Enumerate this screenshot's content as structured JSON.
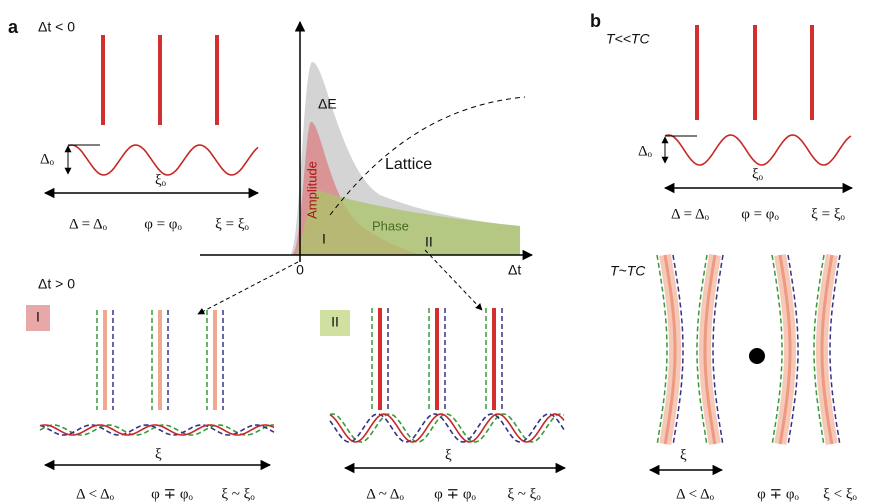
{
  "panel_a": {
    "label": "a",
    "top": {
      "condition": "Δt < 0",
      "delta_label": "Δₒ",
      "xi_label": "ξₒ",
      "relations": [
        "Δ = Δₒ",
        "φ = φₒ",
        "ξ = ξₒ"
      ]
    },
    "graph": {
      "y_label": "ΔE",
      "amplitude": "Amplitude",
      "lattice": "Lattice",
      "phase": "Phase",
      "marker_1": "I",
      "marker_2": "II",
      "origin": "0",
      "x_label": "Δt"
    },
    "bottom": {
      "condition": "Δt > 0",
      "regimes": [
        {
          "tag": "I",
          "xi_label": "ξ",
          "relations": [
            "Δ < Δₒ",
            "φ ∓ φₒ",
            "ξ ~ ξₒ"
          ]
        },
        {
          "tag": "II",
          "xi_label": "ξ",
          "relations": [
            "Δ ~ Δₒ",
            "φ ∓ φₒ",
            "ξ ~ ξₒ"
          ]
        }
      ]
    }
  },
  "panel_b": {
    "label": "b",
    "low": {
      "condition": "T<<TC",
      "delta_label": "Δₒ",
      "xi_label": "ξₒ",
      "relations": [
        "Δ = Δₒ",
        "φ = φₒ",
        "ξ = ξₒ"
      ]
    },
    "near": {
      "condition": "T~TC",
      "xi_label": "ξ",
      "relations": [
        "Δ < Δₒ",
        "φ ∓ φₒ",
        "ξ < ξₒ"
      ]
    }
  }
}
